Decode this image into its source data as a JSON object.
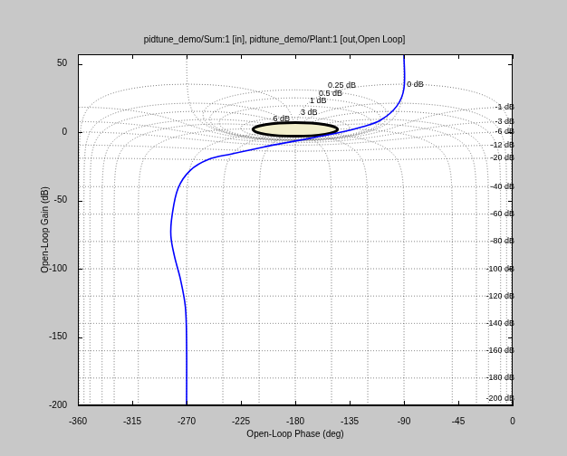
{
  "chart_data": {
    "type": "line",
    "title": "pidtune_demo/Sum:1 [in], pidtune_demo/Plant:1 [out,Open Loop]",
    "xlabel": "Open-Loop Phase (deg)",
    "ylabel": "Open-Loop Gain (dB)",
    "x": [
      -90,
      -90,
      -96,
      -109,
      -124,
      -147,
      -177,
      -207,
      -233,
      -252,
      -267,
      -277,
      -282,
      -283,
      -280,
      -275,
      -271,
      -270,
      -270
    ],
    "values": [
      57,
      32,
      19,
      9,
      4,
      -1,
      -6,
      -11,
      -16,
      -20,
      -28,
      -41,
      -61,
      -76,
      -91,
      -108,
      -128,
      -155,
      -200
    ],
    "color": "#0000ff",
    "xlim": [
      -360,
      0
    ],
    "ylim": [
      -200,
      57
    ],
    "xticks": [
      -360,
      -315,
      -270,
      -225,
      -180,
      -135,
      -90,
      -45,
      0
    ],
    "yticks": [
      -200,
      -150,
      -100,
      -50,
      0,
      50
    ],
    "grid": true,
    "contours": [
      {
        "value": 6,
        "label": "6 dB"
      },
      {
        "value": 3,
        "label": "3 dB"
      },
      {
        "value": 1,
        "label": "1 dB"
      },
      {
        "value": 0.5,
        "label": "0.5 dB"
      },
      {
        "value": 0.25,
        "label": "0.25 dB"
      },
      {
        "value": 0,
        "label": "0 dB"
      },
      {
        "value": -1,
        "label": "-1 dB"
      },
      {
        "value": -3,
        "label": "-3 dB"
      },
      {
        "value": -6,
        "label": "-6 dB"
      },
      {
        "value": -12,
        "label": "-12 dB"
      },
      {
        "value": -20,
        "label": "-20 dB"
      },
      {
        "value": -40,
        "label": "-40 dB"
      },
      {
        "value": -60,
        "label": "-60 dB"
      },
      {
        "value": -80,
        "label": "-80 dB"
      },
      {
        "value": -100,
        "label": "-100 dB"
      },
      {
        "value": -120,
        "label": "-120 dB"
      },
      {
        "value": -140,
        "label": "-140 dB"
      },
      {
        "value": -160,
        "label": "-160 dB"
      },
      {
        "value": -180,
        "label": "-180 dB"
      },
      {
        "value": -200,
        "label": "-200 dB"
      }
    ],
    "phase_contours": [
      -1,
      -5,
      -10,
      -20,
      -30,
      -50,
      -90,
      -120,
      -150,
      -180,
      -210,
      -240,
      -270,
      -310,
      -330,
      -340,
      -350,
      -355,
      -359
    ],
    "region": {
      "phase": [
        -215,
        -145
      ],
      "gain": [
        -3,
        7
      ],
      "color": "#f2efcc"
    }
  }
}
